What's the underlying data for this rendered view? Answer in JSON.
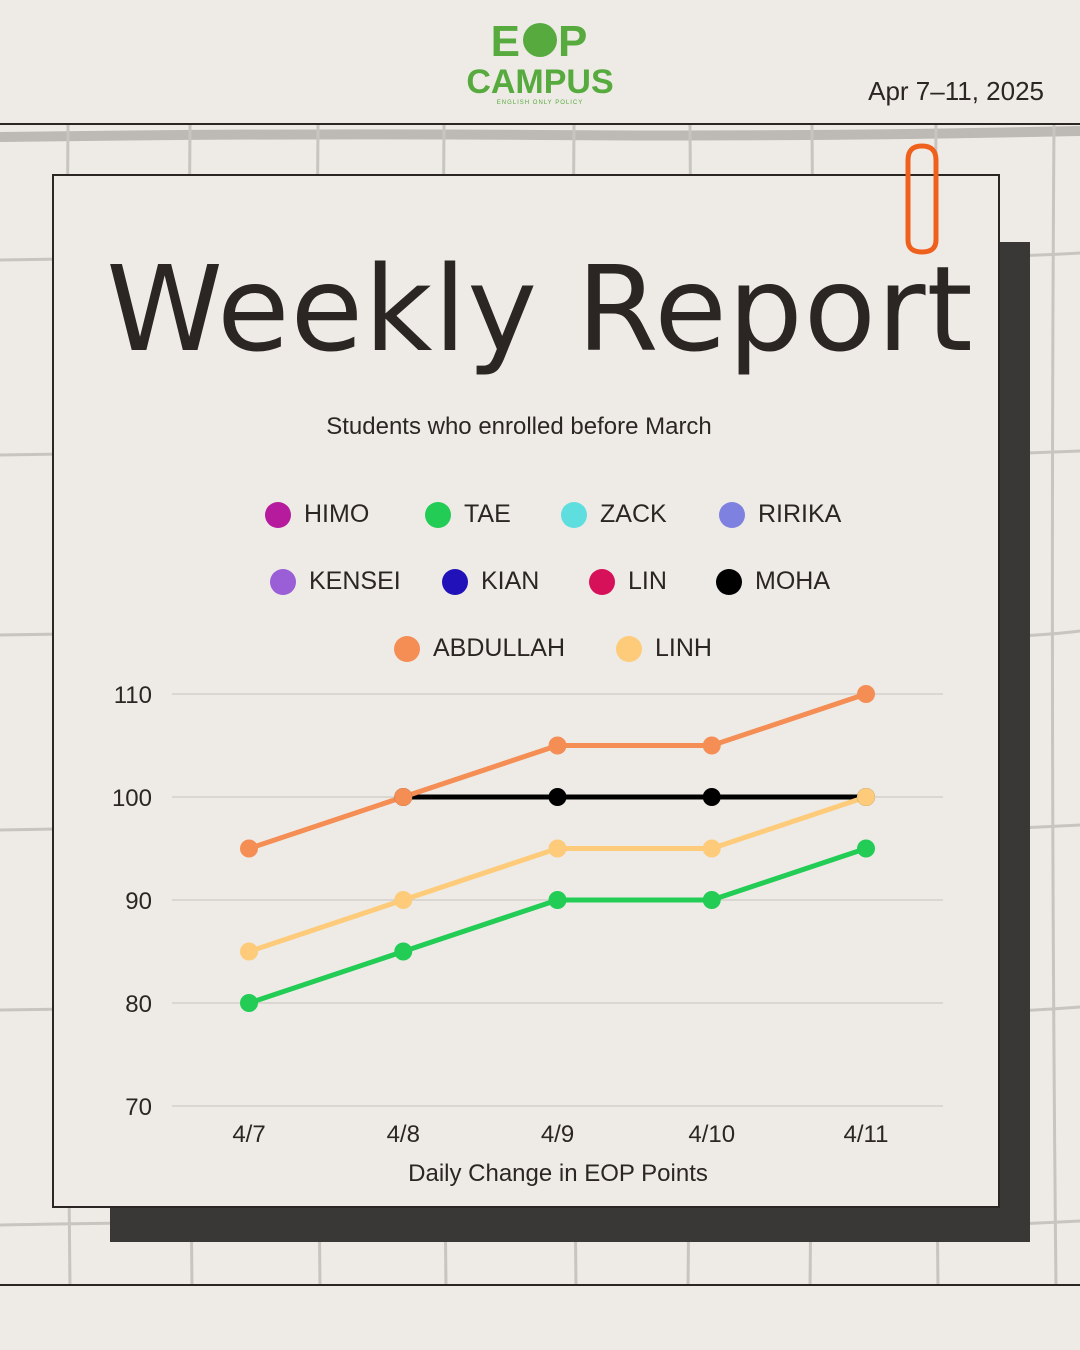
{
  "header": {
    "logo_top_left": "E",
    "logo_top_right": "P",
    "logo_bottom": "CAMPUS",
    "logo_tagline": "ENGLISH ONLY POLICY",
    "date_range": "Apr 7–11, 2025"
  },
  "report": {
    "title": "Weekly Report",
    "subtitle": "Students who enrolled before March"
  },
  "colors": {
    "background": "#eeebe6",
    "ink": "#2b2623",
    "brand_green": "#57ab3e",
    "clip_orange": "#f0601d",
    "shadow": "#3a3837"
  },
  "legend": [
    {
      "name": "HIMO",
      "color": "#b51b9c"
    },
    {
      "name": "TAE",
      "color": "#22cc55"
    },
    {
      "name": "ZACK",
      "color": "#5fdee0"
    },
    {
      "name": "RIRIKA",
      "color": "#7f81e0"
    },
    {
      "name": "KENSEI",
      "color": "#9a5ed6"
    },
    {
      "name": "KIAN",
      "color": "#2011b8"
    },
    {
      "name": "LIN",
      "color": "#d6115a"
    },
    {
      "name": "MOHA",
      "color": "#000000"
    },
    {
      "name": "ABDULLAH",
      "color": "#f48e55"
    },
    {
      "name": "LINH",
      "color": "#fdcb7a"
    }
  ],
  "chart_data": {
    "type": "line",
    "title": "",
    "xlabel": "Daily Change in EOP Points",
    "ylabel": "",
    "categories": [
      "4/7",
      "4/8",
      "4/9",
      "4/10",
      "4/11"
    ],
    "ylim": [
      70,
      110
    ],
    "yticks": [
      "70",
      "80",
      "90",
      "100",
      "110"
    ],
    "grid": true,
    "legend_position": "top",
    "series": [
      {
        "name": "MOHA",
        "color": "#000000",
        "values": [
          null,
          100,
          100,
          100,
          100
        ]
      },
      {
        "name": "ABDULLAH",
        "color": "#f48e55",
        "values": [
          95,
          100,
          105,
          105,
          110
        ]
      },
      {
        "name": "LINH",
        "color": "#fdcb7a",
        "values": [
          85,
          90,
          95,
          95,
          100
        ]
      },
      {
        "name": "TAE",
        "color": "#22cc55",
        "values": [
          80,
          85,
          90,
          90,
          95
        ]
      }
    ]
  }
}
